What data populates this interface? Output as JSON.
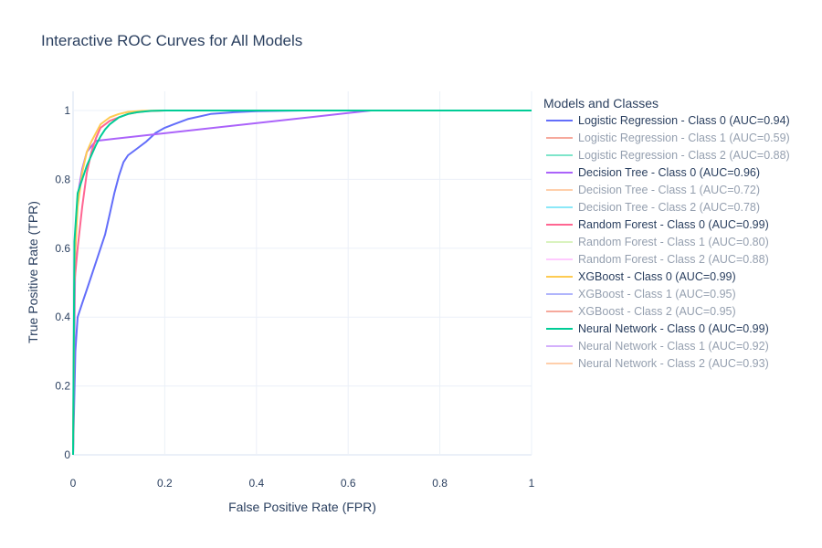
{
  "chart_data": {
    "type": "line",
    "title": "Interactive ROC Curves for All Models",
    "xlabel": "False Positive Rate (FPR)",
    "ylabel": "True Positive Rate (TPR)",
    "xlim": [
      0,
      1
    ],
    "ylim": [
      0,
      1
    ],
    "x_ticks": [
      "0",
      "0.2",
      "0.4",
      "0.6",
      "0.8",
      "1"
    ],
    "y_ticks": [
      "0",
      "0.2",
      "0.4",
      "0.6",
      "0.8",
      "1"
    ],
    "grid": true,
    "legend": {
      "title": "Models and Classes",
      "position": "right"
    },
    "series": [
      {
        "name": "Logistic Regression - Class 0 (AUC=0.94)",
        "color": "#636efa",
        "visible": true,
        "x": [
          0,
          0.005,
          0.01,
          0.02,
          0.03,
          0.04,
          0.05,
          0.06,
          0.07,
          0.08,
          0.09,
          0.1,
          0.11,
          0.12,
          0.14,
          0.16,
          0.18,
          0.2,
          0.22,
          0.25,
          0.3,
          0.35,
          0.4,
          0.5,
          0.65,
          1
        ],
        "y": [
          0,
          0.3,
          0.4,
          0.44,
          0.48,
          0.52,
          0.56,
          0.6,
          0.64,
          0.7,
          0.76,
          0.81,
          0.85,
          0.87,
          0.89,
          0.91,
          0.935,
          0.95,
          0.96,
          0.975,
          0.99,
          0.995,
          0.998,
          1,
          1,
          1
        ]
      },
      {
        "name": "Logistic Regression - Class 1 (AUC=0.59)",
        "color": "#ef553b",
        "visible": false,
        "x": [],
        "y": []
      },
      {
        "name": "Logistic Regression - Class 2 (AUC=0.88)",
        "color": "#00cc96",
        "visible": false,
        "x": [],
        "y": []
      },
      {
        "name": "Decision Tree - Class 0 (AUC=0.96)",
        "color": "#ab63fa",
        "visible": true,
        "x": [
          0,
          0.005,
          0.01,
          0.02,
          0.03,
          0.05,
          0.65,
          1
        ],
        "y": [
          0,
          0.6,
          0.75,
          0.83,
          0.88,
          0.912,
          1,
          1
        ]
      },
      {
        "name": "Decision Tree - Class 1 (AUC=0.72)",
        "color": "#ffa15a",
        "visible": false,
        "x": [],
        "y": []
      },
      {
        "name": "Decision Tree - Class 2 (AUC=0.78)",
        "color": "#19d3f3",
        "visible": false,
        "x": [],
        "y": []
      },
      {
        "name": "Random Forest - Class 0 (AUC=0.99)",
        "color": "#ff6692",
        "visible": true,
        "x": [
          0,
          0.003,
          0.01,
          0.02,
          0.03,
          0.04,
          0.05,
          0.06,
          0.08,
          0.1,
          0.12,
          0.14,
          0.16,
          0.2,
          0.3,
          1
        ],
        "y": [
          0,
          0.5,
          0.6,
          0.72,
          0.82,
          0.88,
          0.92,
          0.95,
          0.97,
          0.98,
          0.99,
          0.995,
          0.998,
          1,
          1,
          1
        ]
      },
      {
        "name": "Random Forest - Class 1 (AUC=0.80)",
        "color": "#b6e880",
        "visible": false,
        "x": [],
        "y": []
      },
      {
        "name": "Random Forest - Class 2 (AUC=0.88)",
        "color": "#ff97ff",
        "visible": false,
        "x": [],
        "y": []
      },
      {
        "name": "XGBoost - Class 0 (AUC=0.99)",
        "color": "#fecb52",
        "visible": true,
        "x": [
          0,
          0.003,
          0.01,
          0.02,
          0.03,
          0.04,
          0.05,
          0.06,
          0.08,
          0.1,
          0.12,
          0.15,
          0.2,
          1
        ],
        "y": [
          0,
          0.55,
          0.72,
          0.82,
          0.88,
          0.91,
          0.935,
          0.96,
          0.98,
          0.99,
          0.996,
          0.999,
          1,
          1
        ]
      },
      {
        "name": "XGBoost - Class 1 (AUC=0.95)",
        "color": "#636efa",
        "visible": false,
        "x": [],
        "y": []
      },
      {
        "name": "XGBoost - Class 2 (AUC=0.95)",
        "color": "#ef553b",
        "visible": false,
        "x": [],
        "y": []
      },
      {
        "name": "Neural Network - Class 0 (AUC=0.99)",
        "color": "#00cc96",
        "visible": true,
        "x": [
          0,
          0.003,
          0.01,
          0.02,
          0.03,
          0.04,
          0.05,
          0.06,
          0.07,
          0.08,
          0.1,
          0.12,
          0.14,
          0.17,
          0.2,
          1
        ],
        "y": [
          0,
          0.62,
          0.76,
          0.8,
          0.84,
          0.87,
          0.9,
          0.925,
          0.945,
          0.96,
          0.98,
          0.99,
          0.995,
          0.999,
          1,
          1
        ]
      },
      {
        "name": "Neural Network - Class 1 (AUC=0.92)",
        "color": "#ab63fa",
        "visible": false,
        "x": [],
        "y": []
      },
      {
        "name": "Neural Network - Class 2 (AUC=0.93)",
        "color": "#ffa15a",
        "visible": false,
        "x": [],
        "y": []
      }
    ]
  }
}
